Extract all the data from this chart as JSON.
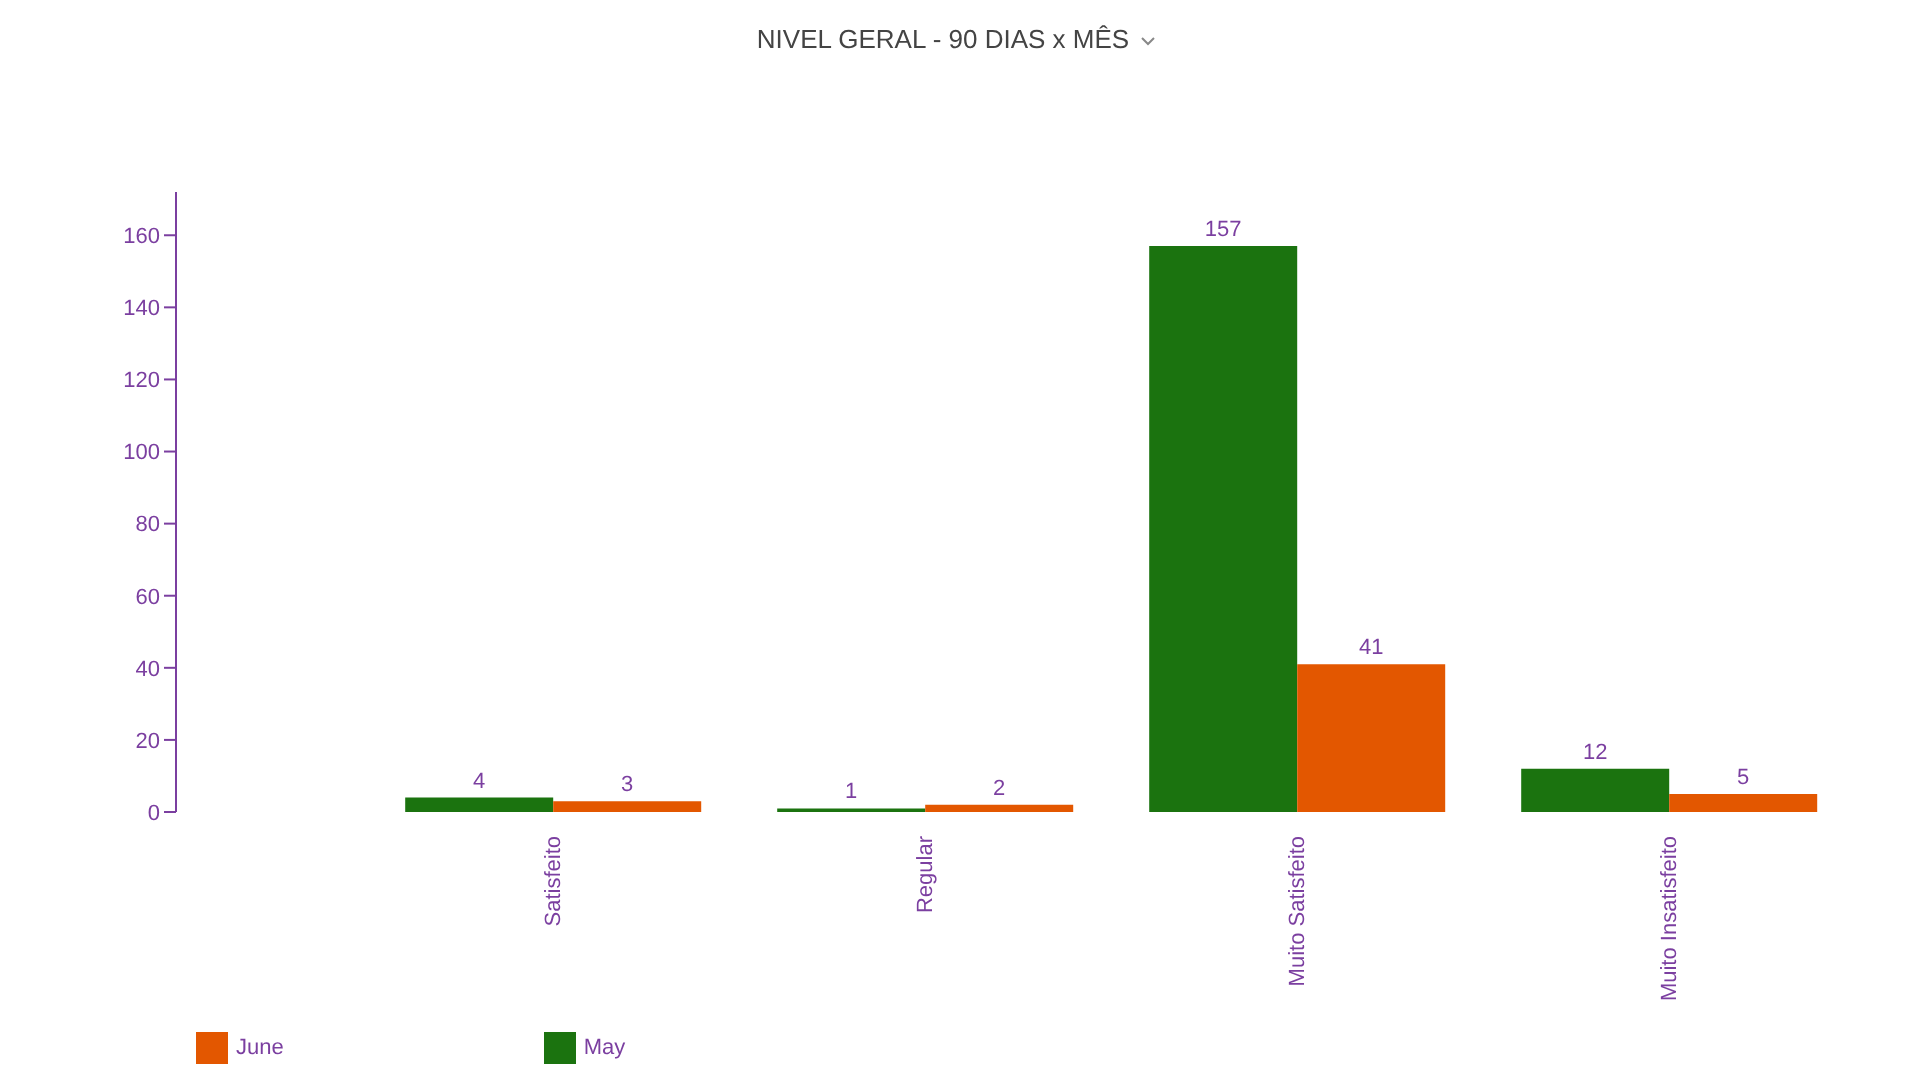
{
  "chart_data": {
    "type": "bar",
    "title": "NIVEL GERAL - 90 DIAS x MÊS",
    "categories": [
      "Satisfeito",
      "Regular",
      "Muito Satisfeito",
      "Muito Insatisfeito"
    ],
    "series": [
      {
        "name": "May",
        "color": "#1b730f",
        "values": [
          4,
          1,
          157,
          12
        ]
      },
      {
        "name": "June",
        "color": "#e35700",
        "values": [
          3,
          2,
          41,
          5
        ]
      }
    ],
    "ylim": [
      0,
      172
    ],
    "yticks": [
      0,
      20,
      40,
      60,
      80,
      100,
      120,
      140,
      160
    ],
    "data_labels": true,
    "grid": false,
    "legend": "bottom left"
  }
}
